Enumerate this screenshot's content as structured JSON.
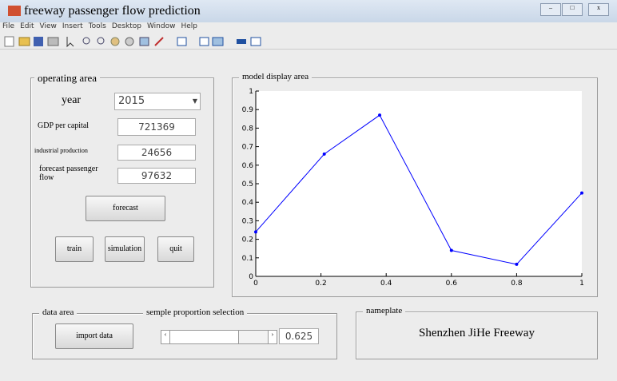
{
  "window": {
    "title": "freeway passenger flow prediction"
  },
  "menu": [
    "File",
    "Edit",
    "View",
    "Insert",
    "Tools",
    "Desktop",
    "Window",
    "Help"
  ],
  "operating_area": {
    "title": "operating area",
    "year_label": "year",
    "year": "2015",
    "gdp_label": "GDP per capital",
    "gdp": "721369",
    "industrial_label": "industrial production",
    "industrial": "24656",
    "forecast_label": "forecast passenger flow",
    "forecast_value": "97632",
    "buttons": [
      "forecast",
      "train",
      "simulation",
      "quit"
    ]
  },
  "model_area": {
    "title": "model display area"
  },
  "chart_data": {
    "type": "line",
    "x": [
      0,
      0.21,
      0.38,
      0.6,
      0.8,
      1
    ],
    "series": [
      {
        "color": "#0000ff",
        "values": [
          0.24,
          0.66,
          0.87,
          0.14,
          0.065,
          0.45
        ]
      }
    ],
    "xlim": [
      0,
      1
    ],
    "xticks": [
      0,
      0.2,
      0.4,
      0.6,
      0.8,
      1
    ],
    "ylim": [
      0,
      1
    ],
    "yticks": [
      0,
      0.1,
      0.2,
      0.3,
      0.4,
      0.5,
      0.6,
      0.7,
      0.8,
      0.9,
      1
    ]
  },
  "data_area": {
    "title": "data area",
    "button": "import data",
    "slider_title": "semple proportion selection",
    "slider_value": "0.625"
  },
  "nameplate": {
    "title": "nameplate",
    "text": "Shenzhen JiHe Freeway"
  }
}
